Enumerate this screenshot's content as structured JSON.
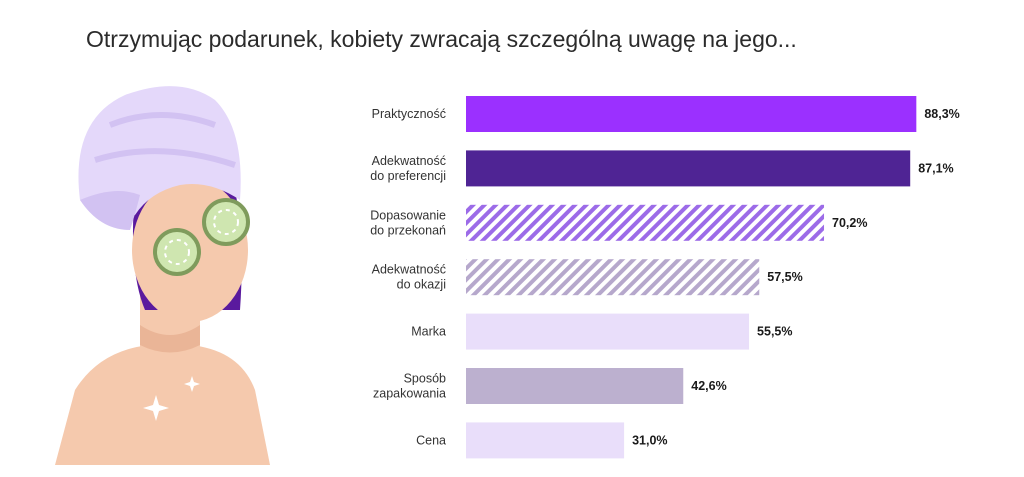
{
  "title": "Otrzymując podarunek, kobiety zwracają szczególną uwagę na jego...",
  "chart_data": {
    "type": "bar",
    "orientation": "horizontal",
    "title": "Otrzymując podarunek, kobiety zwracają szczególną uwagę na jego...",
    "categories": [
      [
        "Praktyczność"
      ],
      [
        "Adekwatność",
        "do preferencji"
      ],
      [
        "Dopasowanie",
        "do przekonań"
      ],
      [
        "Adekwatność",
        "do okazji"
      ],
      [
        "Marka"
      ],
      [
        "Sposób",
        "zapakowania"
      ],
      [
        "Cena"
      ]
    ],
    "values": [
      88.3,
      87.1,
      70.2,
      57.5,
      55.5,
      42.6,
      31.0
    ],
    "value_labels": [
      "88,3%",
      "87,1%",
      "70,2%",
      "57,5%",
      "55,5%",
      "42,6%",
      "31,0%"
    ],
    "bar_styles": [
      {
        "fill": "#9b30ff",
        "pattern": "solid"
      },
      {
        "fill": "#4f2494",
        "pattern": "solid"
      },
      {
        "fill": "#9c6be8",
        "pattern": "hatch",
        "bg": "#ffffff"
      },
      {
        "fill": "#b6a8cc",
        "pattern": "hatch",
        "bg": "#ffffff"
      },
      {
        "fill": "#e9defa",
        "pattern": "solid"
      },
      {
        "fill": "#bcb0cf",
        "pattern": "solid"
      },
      {
        "fill": "#e9defa",
        "pattern": "solid"
      }
    ],
    "xlim": [
      0,
      100
    ],
    "grid": false,
    "legend": "none"
  },
  "illustration": {
    "icon": "woman-with-towel-and-cucumber-eye-mask-icon",
    "colors": {
      "towel": "#e4d8fa",
      "towel_shade": "#d2c2f2",
      "skin": "#f5c9ad",
      "hair": "#5a1a9e",
      "cucumber": "#cfe6b0",
      "cucumber_rim": "#7f9b5c"
    }
  }
}
